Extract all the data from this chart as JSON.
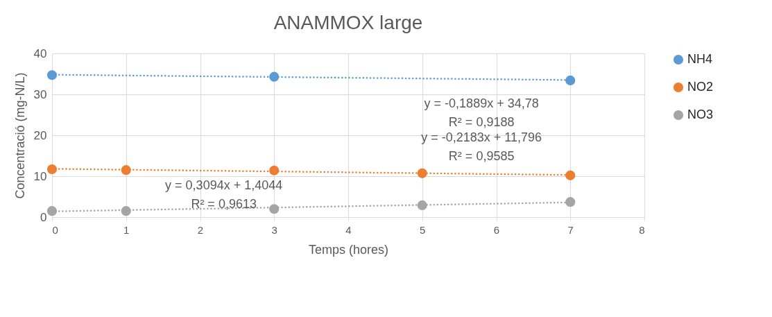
{
  "chart_data": {
    "type": "scatter",
    "title": "ANAMMOX large",
    "xlabel": "Temps (hores)",
    "ylabel": "Concentració (mg-N/L)",
    "series": [
      {
        "name": "NH4",
        "color": "#5b9bd5",
        "x": [
          0,
          3,
          7
        ],
        "values": [
          34.7,
          34.3,
          33.4
        ]
      },
      {
        "name": "NO2",
        "color": "#ed7d31",
        "x": [
          0,
          1,
          3,
          5,
          7
        ],
        "values": [
          11.7,
          11.5,
          11.4,
          10.7,
          10.2
        ]
      },
      {
        "name": "NO3",
        "color": "#a5a5a5",
        "x": [
          0,
          1,
          3,
          5,
          7
        ],
        "values": [
          1.5,
          1.5,
          2.0,
          2.9,
          3.7
        ]
      },
      {
        "type": "line",
        "color": "#5b9bd5",
        "x": [
          0,
          7
        ],
        "values": [
          34.8,
          33.5
        ],
        "line_style": "dotted",
        "marker": "none"
      },
      {
        "type": "line",
        "color": "#ed7d31",
        "x": [
          0,
          7
        ],
        "values": [
          11.8,
          10.3
        ],
        "line_style": "dotted",
        "marker": "none"
      },
      {
        "type": "line",
        "color": "#a5a5a5",
        "x": [
          0,
          7
        ],
        "values": [
          1.4,
          3.6
        ],
        "line_style": "dotted",
        "marker": "none"
      }
    ],
    "annotations": [
      "y = -0,1889x + 34,78\nR² = 0,9188",
      "y = -0,2183x + 11,796\nR² = 0,9585",
      "y = 0,3094x + 1,4044\nR² = 0,9613"
    ],
    "marker": "circle",
    "xlim": [
      0,
      8
    ],
    "xticks": [
      0,
      1,
      2,
      3,
      4,
      5,
      6,
      7,
      8
    ],
    "ylim": [
      0,
      40
    ],
    "yticks": [
      0,
      10,
      20,
      30,
      40
    ],
    "grid": true,
    "legend": "right"
  }
}
